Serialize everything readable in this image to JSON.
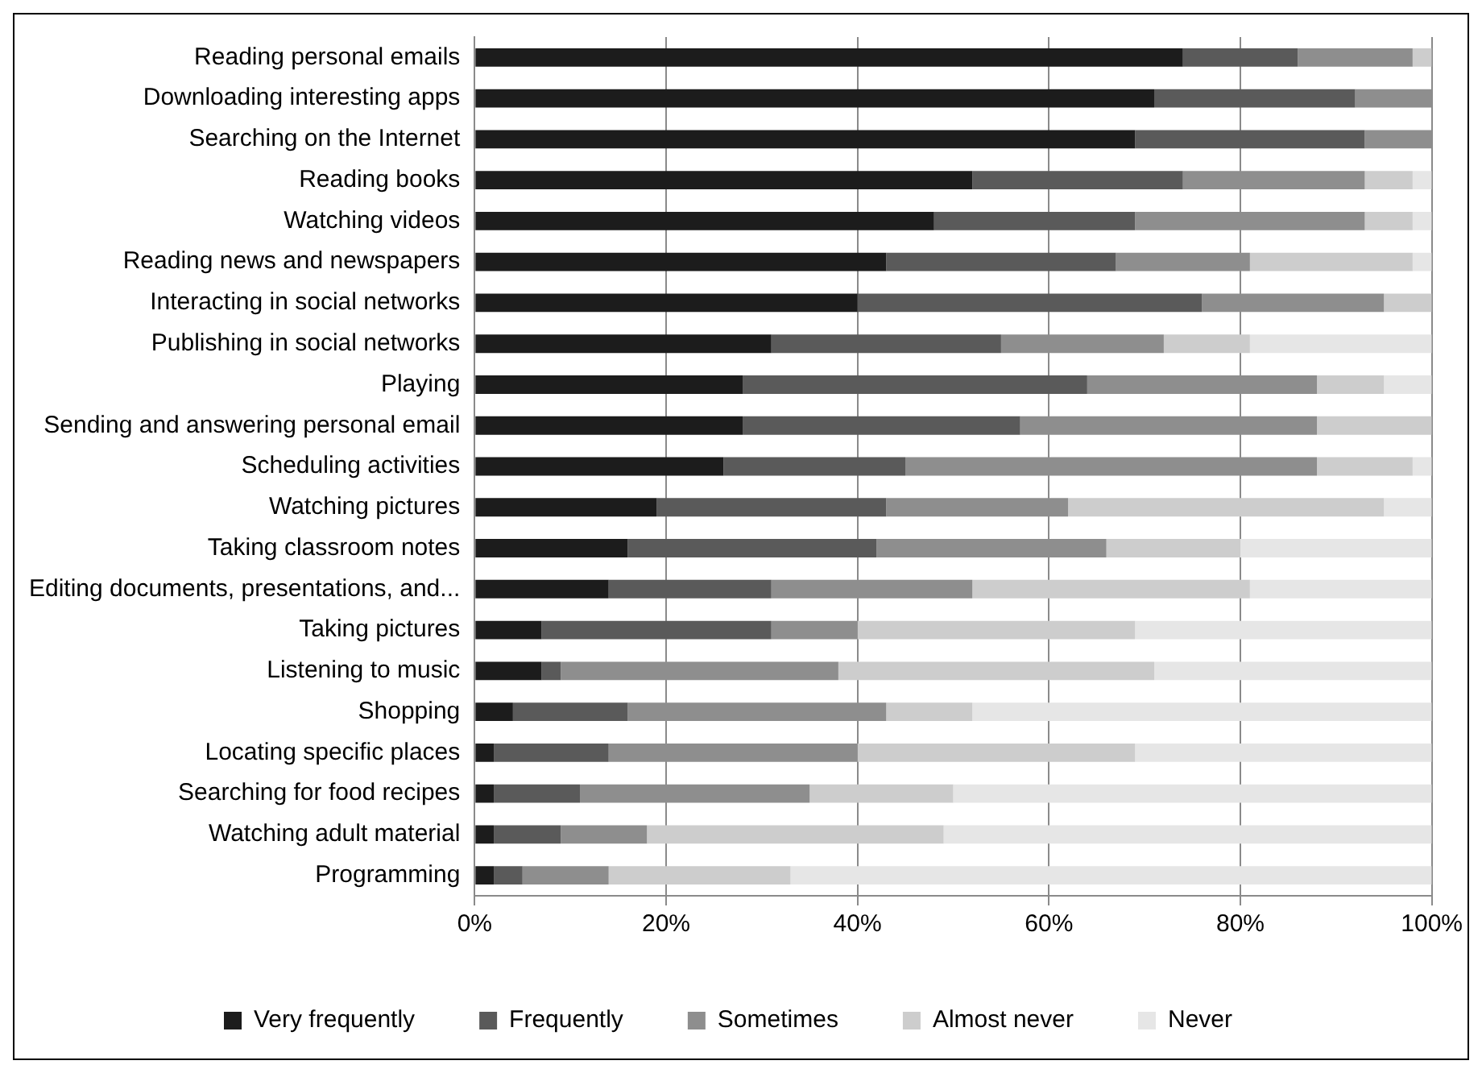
{
  "chart_data": {
    "type": "bar",
    "orientation": "horizontal",
    "stacked": true,
    "categories": [
      "Reading personal emails",
      "Downloading interesting apps",
      "Searching on the Internet",
      "Reading books",
      "Watching videos",
      "Reading news and newspapers",
      "Interacting in social networks",
      "Publishing in social networks",
      "Playing",
      "Sending and answering personal email",
      "Scheduling activities",
      "Watching pictures",
      "Taking classroom notes",
      "Editing documents, presentations, and...",
      "Taking pictures",
      "Listening to music",
      "Shopping",
      "Locating specific places",
      "Searching for food recipes",
      "Watching adult material",
      "Programming"
    ],
    "series": [
      {
        "name": "Very frequently",
        "color": "#1c1c1c",
        "values": [
          74,
          71,
          69,
          52,
          48,
          43,
          40,
          31,
          28,
          28,
          26,
          19,
          16,
          14,
          7,
          7,
          4,
          2,
          2,
          2,
          2
        ]
      },
      {
        "name": "Frequently",
        "color": "#5a5a5a",
        "values": [
          12,
          21,
          24,
          22,
          21,
          24,
          36,
          24,
          36,
          29,
          19,
          24,
          26,
          17,
          24,
          2,
          12,
          12,
          9,
          7,
          3
        ]
      },
      {
        "name": "Sometimes",
        "color": "#8e8e8e",
        "values": [
          12,
          8,
          7,
          19,
          24,
          14,
          19,
          17,
          24,
          31,
          43,
          19,
          24,
          21,
          9,
          29,
          27,
          26,
          24,
          9,
          9
        ]
      },
      {
        "name": "Almost never",
        "color": "#cdcdcd",
        "values": [
          2,
          0,
          0,
          5,
          5,
          17,
          5,
          9,
          7,
          12,
          10,
          33,
          14,
          29,
          29,
          33,
          9,
          29,
          15,
          31,
          19
        ]
      },
      {
        "name": "Never",
        "color": "#e6e6e6",
        "values": [
          0,
          0,
          0,
          2,
          2,
          2,
          0,
          19,
          5,
          0,
          2,
          5,
          20,
          19,
          31,
          29,
          48,
          31,
          50,
          51,
          67
        ]
      }
    ],
    "xlim": [
      0,
      100
    ],
    "xticks": [
      {
        "value": 0,
        "label": "0%"
      },
      {
        "value": 20,
        "label": "20%"
      },
      {
        "value": 40,
        "label": "40%"
      },
      {
        "value": 60,
        "label": "60%"
      },
      {
        "value": 80,
        "label": "80%"
      },
      {
        "value": 100,
        "label": "100%"
      }
    ],
    "grid": "x",
    "legend": "bottom"
  }
}
